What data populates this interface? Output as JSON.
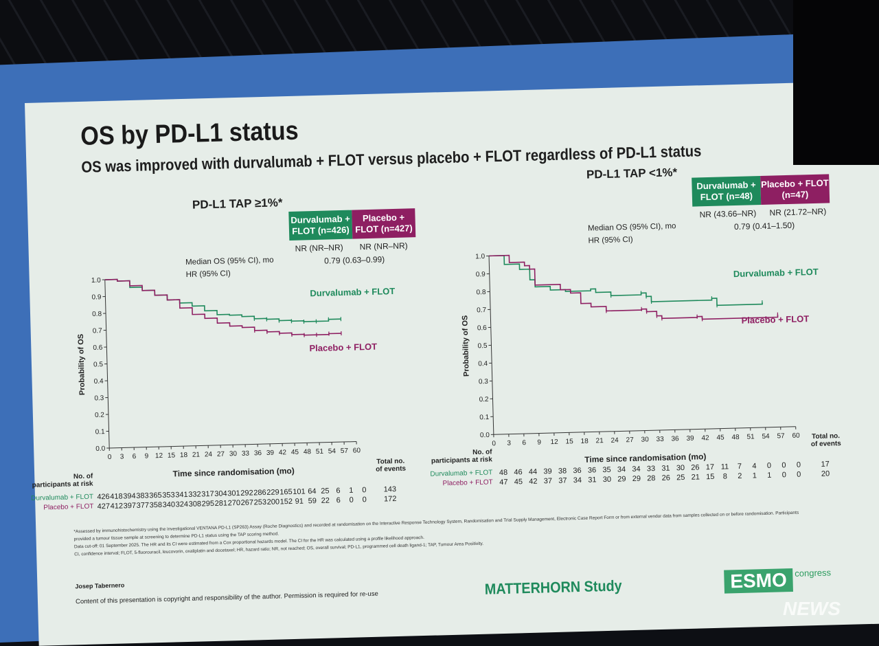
{
  "slide": {
    "title": "OS by PD-L1 status",
    "subtitle": "OS was improved with durvalumab + FLOT versus placebo + FLOT regardless of PD-L1 status",
    "footnotes": [
      "*Assessed by immunohistochemistry using the investigational VENTANA PD-L1 (SP263) Assay (Roche Diagnostics) and recorded at randomisation on the Interactive Response Technology System, Randomisation and Trial Supply Management, Electronic Case Report Form or from external vendor data from samples collected on or before randomisation. Participants provided a tumour tissue sample at screening to determine PD-L1 status using the TAP scoring method.",
      "Data cut-off: 01 September 2025. The HR and its CI were estimated from a Cox proportional hazards model. The CI for the HR was calculated using a profile likelihood approach.",
      "CI, confidence interval; FLOT, 5-fluorouracil, leucovorin, oxaliplatin and docetaxel; HR, hazard ratio; NR, not reached; OS, overall survival; PD-L1, programmed cell death ligand-1; TAP, Tumour Area Positivity."
    ],
    "author": "Josep Tabernero",
    "copyright": "Content of this presentation is copyright and responsibility of the author. Permission is required for re-use",
    "study": "MATTERHORN Study",
    "logo": "ESMO",
    "logo_suffix": "congress",
    "watermark": "NEWS"
  },
  "colors": {
    "durvalumab": "#1f8a5c",
    "placebo": "#8e1f62",
    "slide_bg": "#e6ede8",
    "screen_border": "#3d6fb8"
  },
  "chart_data": [
    {
      "type": "line",
      "title": "PD-L1 TAP ≥1%*",
      "xlabel": "Time since randomisation (mo)",
      "ylabel": "Probability of OS",
      "xlim": [
        0,
        60
      ],
      "ylim": [
        0,
        1
      ],
      "xticks": [
        "0",
        "3",
        "6",
        "9",
        "12",
        "15",
        "18",
        "21",
        "24",
        "27",
        "30",
        "33",
        "36",
        "39",
        "42",
        "45",
        "48",
        "51",
        "54",
        "57",
        "60"
      ],
      "yticks": [
        "0.0",
        "0.1",
        "0.2",
        "0.3",
        "0.4",
        "0.5",
        "0.6",
        "0.7",
        "0.8",
        "0.9",
        "1.0"
      ],
      "table": {
        "headers": [
          "Durvalumab + FLOT (n=426)",
          "Placebo + FLOT (n=427)"
        ],
        "median_label": "Median OS (95% CI), mo",
        "median_values": [
          "NR (NR–NR)",
          "NR (NR–NR)"
        ],
        "hr_label": "HR (95% CI)",
        "hr_value": "0.79 (0.63–0.99)"
      },
      "series": [
        {
          "name": "Durvalumab + FLOT",
          "x": [
            0,
            3,
            6,
            9,
            12,
            15,
            18,
            21,
            24,
            27,
            30,
            33,
            36,
            39,
            42,
            45,
            48,
            51,
            54,
            57
          ],
          "y": [
            1,
            0.99,
            0.95,
            0.93,
            0.9,
            0.87,
            0.85,
            0.83,
            0.8,
            0.775,
            0.77,
            0.76,
            0.745,
            0.74,
            0.73,
            0.725,
            0.72,
            0.72,
            0.73,
            0.73
          ]
        },
        {
          "name": "Placebo + FLOT",
          "x": [
            0,
            3,
            6,
            9,
            12,
            15,
            18,
            21,
            24,
            27,
            30,
            33,
            36,
            39,
            42,
            45,
            48,
            51,
            54,
            57
          ],
          "y": [
            1,
            0.99,
            0.96,
            0.93,
            0.9,
            0.87,
            0.82,
            0.78,
            0.755,
            0.725,
            0.705,
            0.695,
            0.675,
            0.665,
            0.655,
            0.645,
            0.64,
            0.64,
            0.645,
            0.645
          ]
        }
      ],
      "risk": {
        "header": [
          "No. of",
          "participants at risk"
        ],
        "events_header": [
          "Total no.",
          "of events"
        ],
        "rows": [
          {
            "name": "Durvalumab + FLOT",
            "values": [
              "426",
              "418",
              "394",
              "383",
              "365",
              "353",
              "341",
              "332",
              "317",
              "304",
              "301",
              "292",
              "286",
              "229",
              "165",
              "101",
              "64",
              "25",
              "6",
              "1",
              "0"
            ],
            "events": "143"
          },
          {
            "name": "Placebo + FLOT",
            "values": [
              "427",
              "412",
              "397",
              "377",
              "358",
              "340",
              "324",
              "308",
              "295",
              "281",
              "270",
              "267",
              "253",
              "200",
              "152",
              "91",
              "59",
              "22",
              "6",
              "0",
              "0"
            ],
            "events": "172"
          }
        ]
      }
    },
    {
      "type": "line",
      "title": "PD-L1 TAP <1%*",
      "xlabel": "Time since randomisation (mo)",
      "ylabel": "Probability of OS",
      "xlim": [
        0,
        60
      ],
      "ylim": [
        0,
        1
      ],
      "xticks": [
        "0",
        "3",
        "6",
        "9",
        "12",
        "15",
        "18",
        "21",
        "24",
        "27",
        "30",
        "33",
        "36",
        "39",
        "42",
        "45",
        "48",
        "51",
        "54",
        "57",
        "60"
      ],
      "yticks": [
        "0.0",
        "0.1",
        "0.2",
        "0.3",
        "0.4",
        "0.5",
        "0.6",
        "0.7",
        "0.8",
        "0.9",
        "1.0"
      ],
      "table": {
        "headers": [
          "Durvalumab + FLOT (n=48)",
          "Placebo + FLOT (n=47)"
        ],
        "median_label": "Median OS (95% CI), mo",
        "median_values": [
          "NR (43.66–NR)",
          "NR (21.72–NR)"
        ],
        "hr_label": "HR (95% CI)",
        "hr_value": "0.79 (0.41–1.50)"
      },
      "series": [
        {
          "name": "Durvalumab + FLOT",
          "x": [
            0,
            2,
            3,
            6,
            8,
            9,
            12,
            15,
            20,
            21,
            24,
            30,
            31,
            32,
            44,
            45,
            54
          ],
          "y": [
            1,
            1,
            0.95,
            0.92,
            0.86,
            0.82,
            0.8,
            0.79,
            0.8,
            0.78,
            0.76,
            0.77,
            0.75,
            0.72,
            0.73,
            0.69,
            0.7
          ]
        },
        {
          "name": "Placebo + FLOT",
          "x": [
            0,
            3,
            4,
            7,
            8,
            9,
            13,
            14,
            16,
            18,
            20,
            23,
            30,
            31,
            33,
            34,
            41,
            42,
            57
          ],
          "y": [
            1,
            1,
            0.96,
            0.94,
            0.92,
            0.83,
            0.83,
            0.8,
            0.78,
            0.72,
            0.7,
            0.675,
            0.68,
            0.665,
            0.64,
            0.625,
            0.63,
            0.615,
            0.63
          ]
        }
      ],
      "risk": {
        "header": [
          "No. of",
          "participants at risk"
        ],
        "events_header": [
          "Total no.",
          "of events"
        ],
        "rows": [
          {
            "name": "Durvalumab + FLOT",
            "values": [
              "48",
              "46",
              "44",
              "39",
              "38",
              "36",
              "36",
              "35",
              "34",
              "34",
              "33",
              "31",
              "30",
              "26",
              "17",
              "11",
              "7",
              "4",
              "0",
              "0",
              "0"
            ],
            "events": "17"
          },
          {
            "name": "Placebo + FLOT",
            "values": [
              "47",
              "45",
              "42",
              "37",
              "37",
              "34",
              "31",
              "30",
              "29",
              "29",
              "28",
              "26",
              "25",
              "21",
              "15",
              "8",
              "2",
              "1",
              "1",
              "0",
              "0"
            ],
            "events": "20"
          }
        ]
      }
    }
  ]
}
